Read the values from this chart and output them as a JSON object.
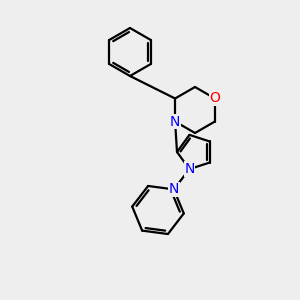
{
  "bg_color": "#eeeeee",
  "line_color": "#000000",
  "atom_colors": {
    "O": "#ff0000",
    "N": "#0000ff",
    "C": "#000000"
  },
  "line_width": 1.6,
  "font_size": 10,
  "figsize": [
    3.0,
    3.0
  ],
  "dpi": 100
}
